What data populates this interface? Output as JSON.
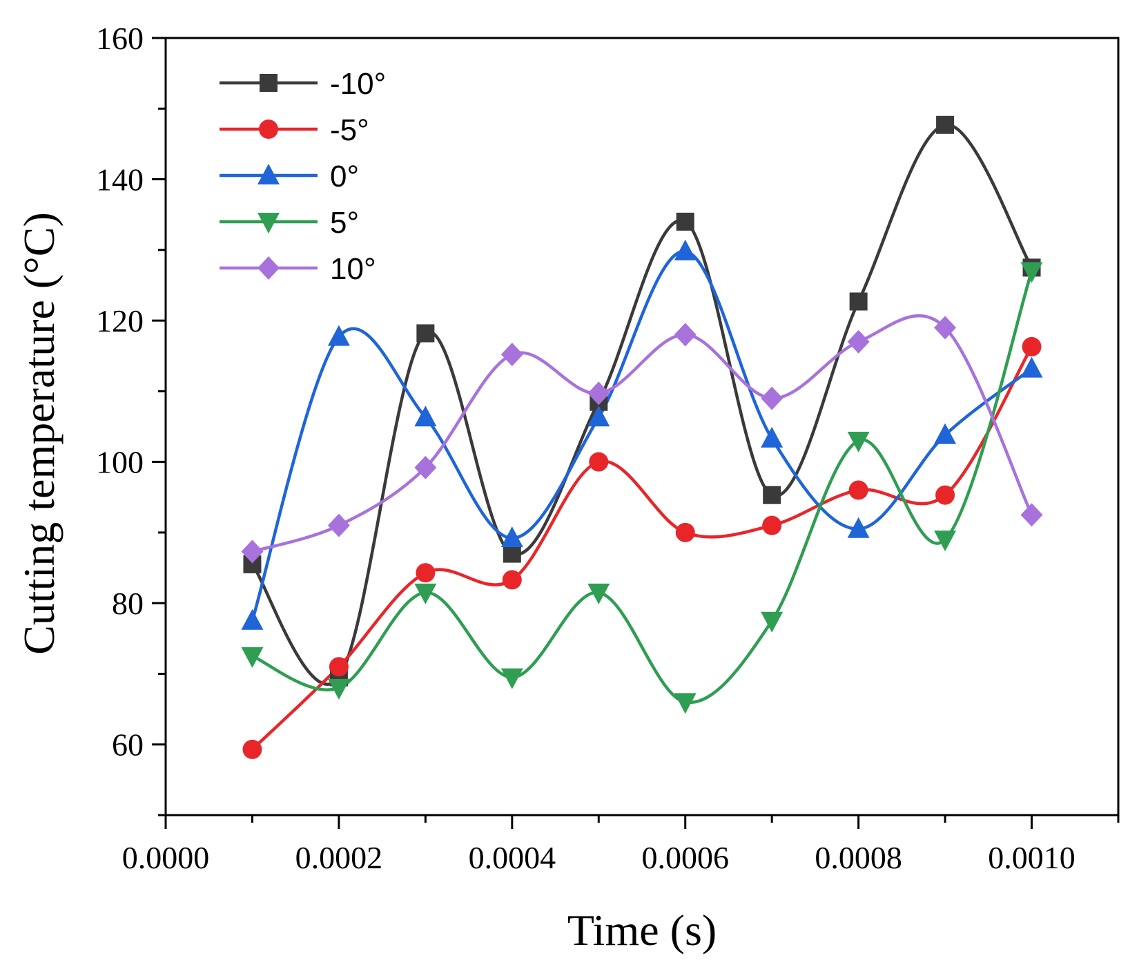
{
  "chart_data": {
    "type": "line",
    "title": "",
    "xlabel": "Time (s)",
    "ylabel": "Cutting temperature (°C)",
    "xlim": [
      0,
      0.0011
    ],
    "ylim": [
      50,
      160
    ],
    "x_ticks": [
      "0.0000",
      "0.0002",
      "0.0004",
      "0.0006",
      "0.0008",
      "0.0010"
    ],
    "y_ticks": [
      "60",
      "80",
      "100",
      "120",
      "140",
      "160"
    ],
    "grid": false,
    "legend_position": "top-left",
    "x": [
      0.0001,
      0.0002,
      0.0003,
      0.0004,
      0.0005,
      0.0006,
      0.0007,
      0.0008,
      0.0009,
      0.001
    ],
    "series": [
      {
        "name": "-10°",
        "color": "#3a3a3a",
        "marker": "square",
        "values": [
          85.5,
          69.5,
          118.2,
          87.0,
          108.5,
          134.0,
          95.3,
          122.7,
          147.7,
          127.5
        ]
      },
      {
        "name": "-5°",
        "color": "#e8262a",
        "marker": "circle",
        "values": [
          59.3,
          71.0,
          84.3,
          83.3,
          100.0,
          90.0,
          91.0,
          96.0,
          95.3,
          116.3
        ]
      },
      {
        "name": "0°",
        "color": "#1f65d8",
        "marker": "triangle-up",
        "values": [
          77.5,
          117.7,
          106.3,
          89.2,
          106.3,
          129.8,
          103.3,
          90.5,
          103.8,
          113.2
        ]
      },
      {
        "name": "5°",
        "color": "#2f9e52",
        "marker": "triangle-down",
        "values": [
          72.5,
          68.0,
          81.5,
          69.5,
          81.5,
          66.0,
          77.5,
          103.0,
          89.0,
          127.0
        ]
      },
      {
        "name": "10°",
        "color": "#a872dd",
        "marker": "diamond",
        "values": [
          87.3,
          91.0,
          99.2,
          115.2,
          109.7,
          118.0,
          109.0,
          117.0,
          119.0,
          92.5
        ]
      }
    ]
  }
}
